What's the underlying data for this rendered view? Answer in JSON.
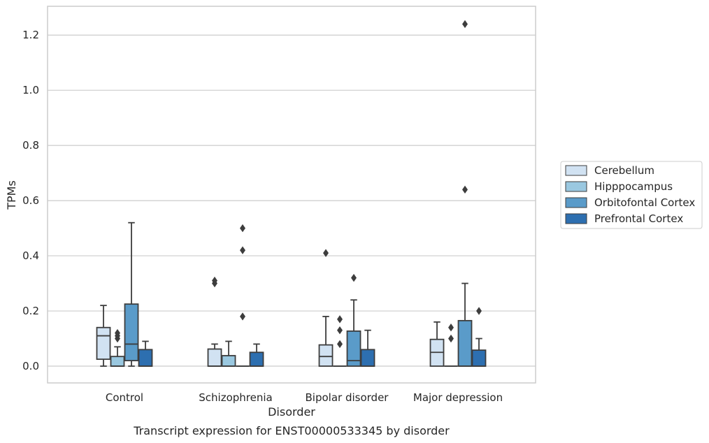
{
  "chart_data": {
    "type": "box",
    "xlabel": "Disorder",
    "ylabel": "TPMs",
    "caption": "Transcript expression for ENST00000533345 by disorder",
    "ylim": [
      -0.06,
      1.3
    ],
    "yticks": [
      "0.0",
      "0.2",
      "0.4",
      "0.6",
      "0.8",
      "1.0",
      "1.2"
    ],
    "grid": "horizontal",
    "legend_position": "right",
    "categories": [
      "Control",
      "Schizophrenia",
      "Bipolar disorder",
      "Major depression"
    ],
    "series": [
      {
        "name": "Cerebellum",
        "color": "#d1e2f2",
        "boxes": [
          {
            "whislo": 0.0,
            "q1": 0.025,
            "med": 0.11,
            "q3": 0.14,
            "whishi": 0.22,
            "fliers": []
          },
          {
            "whislo": 0.0,
            "q1": 0.0,
            "med": 0.0,
            "q3": 0.062,
            "whishi": 0.08,
            "fliers": [
              0.3,
              0.31
            ]
          },
          {
            "whislo": 0.0,
            "q1": 0.0,
            "med": 0.035,
            "q3": 0.077,
            "whishi": 0.18,
            "fliers": [
              0.41
            ]
          },
          {
            "whislo": 0.0,
            "q1": 0.0,
            "med": 0.05,
            "q3": 0.097,
            "whishi": 0.16,
            "fliers": []
          }
        ]
      },
      {
        "name": "Hipppocampus",
        "color": "#9ac8e0",
        "boxes": [
          {
            "whislo": 0.0,
            "q1": 0.0,
            "med": 0.0,
            "q3": 0.035,
            "whishi": 0.07,
            "fliers": [
              0.1,
              0.11,
              0.12
            ]
          },
          {
            "whislo": 0.0,
            "q1": 0.0,
            "med": 0.0,
            "q3": 0.038,
            "whishi": 0.09,
            "fliers": []
          },
          {
            "whislo": 0.0,
            "q1": 0.0,
            "med": 0.0,
            "q3": 0.0,
            "whishi": 0.0,
            "fliers": [
              0.08,
              0.13,
              0.17
            ]
          },
          {
            "whislo": 0.0,
            "q1": 0.0,
            "med": 0.0,
            "q3": 0.0,
            "whishi": 0.0,
            "fliers": [
              0.1,
              0.14
            ]
          }
        ]
      },
      {
        "name": "Orbitofontal Cortex",
        "color": "#5a9bc9",
        "boxes": [
          {
            "whislo": 0.0,
            "q1": 0.02,
            "med": 0.08,
            "q3": 0.225,
            "whishi": 0.52,
            "fliers": []
          },
          {
            "whislo": 0.0,
            "q1": 0.0,
            "med": 0.0,
            "q3": 0.0,
            "whishi": 0.0,
            "fliers": [
              0.18,
              0.42,
              0.5
            ]
          },
          {
            "whislo": 0.0,
            "q1": 0.0,
            "med": 0.02,
            "q3": 0.127,
            "whishi": 0.24,
            "fliers": [
              0.32
            ]
          },
          {
            "whislo": 0.0,
            "q1": 0.0,
            "med": 0.0,
            "q3": 0.165,
            "whishi": 0.3,
            "fliers": [
              0.64,
              1.24
            ]
          }
        ]
      },
      {
        "name": "Prefrontal Cortex",
        "color": "#2d6fb0",
        "boxes": [
          {
            "whislo": 0.0,
            "q1": 0.0,
            "med": 0.0,
            "q3": 0.06,
            "whishi": 0.09,
            "fliers": []
          },
          {
            "whislo": 0.0,
            "q1": 0.0,
            "med": 0.0,
            "q3": 0.05,
            "whishi": 0.08,
            "fliers": []
          },
          {
            "whislo": 0.0,
            "q1": 0.0,
            "med": 0.0,
            "q3": 0.06,
            "whishi": 0.13,
            "fliers": []
          },
          {
            "whislo": 0.0,
            "q1": 0.0,
            "med": 0.0,
            "q3": 0.058,
            "whishi": 0.1,
            "fliers": [
              0.2
            ]
          }
        ]
      }
    ]
  }
}
